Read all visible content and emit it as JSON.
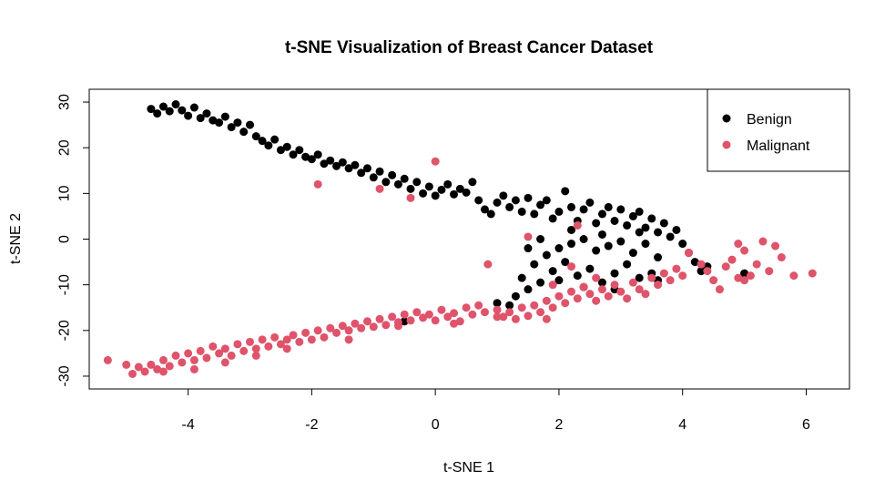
{
  "chart_data": {
    "type": "scatter",
    "title": "t-SNE Visualization of Breast Cancer Dataset",
    "xlabel": "t-SNE 1",
    "ylabel": "t-SNE 2",
    "xlim": [
      -5.6,
      6.7
    ],
    "ylim": [
      -32.8,
      32.8
    ],
    "xticks": [
      -4,
      -2,
      0,
      2,
      4,
      6
    ],
    "yticks": [
      -30,
      -20,
      -10,
      0,
      10,
      20,
      30
    ],
    "xtick_labels": [
      "-4",
      "-2",
      "0",
      "2",
      "4",
      "6"
    ],
    "ytick_labels": [
      "-30",
      "-20",
      "-10",
      "0",
      "10",
      "20",
      "30"
    ],
    "grid": false,
    "legend_position": "top-right",
    "series": [
      {
        "name": "Benign",
        "color": "#000000",
        "points": [
          [
            -4.6,
            28.5
          ],
          [
            -4.5,
            27.5
          ],
          [
            -4.4,
            29.0
          ],
          [
            -4.3,
            28.0
          ],
          [
            -4.2,
            29.5
          ],
          [
            -4.1,
            28.2
          ],
          [
            -4.0,
            27.0
          ],
          [
            -3.9,
            28.8
          ],
          [
            -3.8,
            26.5
          ],
          [
            -3.7,
            27.5
          ],
          [
            -3.6,
            26.0
          ],
          [
            -3.5,
            25.5
          ],
          [
            -3.4,
            26.8
          ],
          [
            -3.3,
            24.5
          ],
          [
            -3.2,
            25.5
          ],
          [
            -3.1,
            23.5
          ],
          [
            -3.0,
            25.0
          ],
          [
            -2.9,
            22.5
          ],
          [
            -2.8,
            21.5
          ],
          [
            -2.7,
            20.5
          ],
          [
            -2.6,
            21.8
          ],
          [
            -2.5,
            19.5
          ],
          [
            -2.4,
            20.2
          ],
          [
            -2.3,
            18.5
          ],
          [
            -2.2,
            19.5
          ],
          [
            -2.1,
            18.0
          ],
          [
            -2.0,
            17.5
          ],
          [
            -1.9,
            18.5
          ],
          [
            -1.8,
            16.5
          ],
          [
            -1.7,
            17.2
          ],
          [
            -1.6,
            16.0
          ],
          [
            -1.5,
            16.8
          ],
          [
            -1.4,
            15.5
          ],
          [
            -1.3,
            16.2
          ],
          [
            -1.2,
            14.5
          ],
          [
            -1.1,
            15.5
          ],
          [
            -1.0,
            13.5
          ],
          [
            -0.9,
            14.8
          ],
          [
            -0.8,
            12.5
          ],
          [
            -0.7,
            14.0
          ],
          [
            -0.6,
            12.0
          ],
          [
            -0.5,
            13.2
          ],
          [
            -0.4,
            11.0
          ],
          [
            -0.3,
            12.5
          ],
          [
            -0.2,
            10.0
          ],
          [
            -0.1,
            11.5
          ],
          [
            0.0,
            9.5
          ],
          [
            0.1,
            10.8
          ],
          [
            0.2,
            12.0
          ],
          [
            0.3,
            9.8
          ],
          [
            0.4,
            11.0
          ],
          [
            0.5,
            10.2
          ],
          [
            0.6,
            12.5
          ],
          [
            0.7,
            8.5
          ],
          [
            0.8,
            6.5
          ],
          [
            0.9,
            5.5
          ],
          [
            1.0,
            8.0
          ],
          [
            1.1,
            9.5
          ],
          [
            1.2,
            7.0
          ],
          [
            1.3,
            8.5
          ],
          [
            1.4,
            6.0
          ],
          [
            1.5,
            9.0
          ],
          [
            1.6,
            5.5
          ],
          [
            1.7,
            7.5
          ],
          [
            1.8,
            8.5
          ],
          [
            1.9,
            4.5
          ],
          [
            2.0,
            6.0
          ],
          [
            2.1,
            10.5
          ],
          [
            2.2,
            7.0
          ],
          [
            2.3,
            4.0
          ],
          [
            2.4,
            6.5
          ],
          [
            2.5,
            8.0
          ],
          [
            2.6,
            3.5
          ],
          [
            2.7,
            5.5
          ],
          [
            2.8,
            7.0
          ],
          [
            2.9,
            4.0
          ],
          [
            3.0,
            6.5
          ],
          [
            3.1,
            3.0
          ],
          [
            3.2,
            5.0
          ],
          [
            3.3,
            6.0
          ],
          [
            3.4,
            2.5
          ],
          [
            3.5,
            4.5
          ],
          [
            3.6,
            1.5
          ],
          [
            3.7,
            3.5
          ],
          [
            3.8,
            0.5
          ],
          [
            3.9,
            2.0
          ],
          [
            4.0,
            -1.0
          ],
          [
            4.1,
            -3.0
          ],
          [
            4.2,
            -5.0
          ],
          [
            4.3,
            -7.0
          ],
          [
            4.4,
            -6.0
          ],
          [
            3.6,
            -9.0
          ],
          [
            3.5,
            -7.5
          ],
          [
            3.3,
            -8.5
          ],
          [
            3.1,
            -5.5
          ],
          [
            2.9,
            -7.5
          ],
          [
            2.7,
            -9.5
          ],
          [
            2.5,
            -6.5
          ],
          [
            2.3,
            -8.0
          ],
          [
            2.1,
            -5.0
          ],
          [
            1.9,
            -7.0
          ],
          [
            1.7,
            -9.5
          ],
          [
            1.5,
            -11.0
          ],
          [
            1.3,
            -12.5
          ],
          [
            1.6,
            -5.5
          ],
          [
            1.8,
            -3.5
          ],
          [
            2.0,
            -2.0
          ],
          [
            2.2,
            -1.0
          ],
          [
            2.4,
            0.0
          ],
          [
            2.6,
            -2.5
          ],
          [
            2.8,
            -1.5
          ],
          [
            3.0,
            -0.5
          ],
          [
            3.2,
            -3.0
          ],
          [
            3.4,
            -1.0
          ],
          [
            3.6,
            -4.0
          ],
          [
            1.5,
            -2.0
          ],
          [
            1.7,
            0.0
          ],
          [
            2.2,
            2.0
          ],
          [
            2.7,
            1.0
          ],
          [
            3.3,
            1.5
          ],
          [
            1.0,
            -14.0
          ],
          [
            1.2,
            -14.5
          ],
          [
            -0.5,
            -18.0
          ],
          [
            5.0,
            -7.5
          ],
          [
            1.4,
            -8.5
          ],
          [
            2.0,
            -9.0
          ],
          [
            2.4,
            -10.5
          ],
          [
            2.9,
            -11.0
          ]
        ]
      },
      {
        "name": "Malignant",
        "color": "#DF536B",
        "points": [
          [
            -5.3,
            -26.5
          ],
          [
            -5.0,
            -27.5
          ],
          [
            -4.9,
            -29.5
          ],
          [
            -4.8,
            -28.0
          ],
          [
            -4.7,
            -29.0
          ],
          [
            -4.6,
            -27.5
          ],
          [
            -4.5,
            -28.5
          ],
          [
            -4.4,
            -26.5
          ],
          [
            -4.3,
            -27.8
          ],
          [
            -4.2,
            -25.5
          ],
          [
            -4.1,
            -27.0
          ],
          [
            -4.0,
            -25.0
          ],
          [
            -3.9,
            -26.5
          ],
          [
            -3.8,
            -24.5
          ],
          [
            -3.7,
            -26.0
          ],
          [
            -3.6,
            -23.5
          ],
          [
            -3.5,
            -25.0
          ],
          [
            -3.4,
            -24.0
          ],
          [
            -3.3,
            -25.5
          ],
          [
            -3.2,
            -23.0
          ],
          [
            -3.1,
            -24.5
          ],
          [
            -3.0,
            -22.5
          ],
          [
            -2.9,
            -24.0
          ],
          [
            -2.8,
            -22.0
          ],
          [
            -2.7,
            -23.5
          ],
          [
            -2.6,
            -21.5
          ],
          [
            -2.5,
            -23.0
          ],
          [
            -2.4,
            -22.0
          ],
          [
            -2.3,
            -21.0
          ],
          [
            -2.2,
            -22.5
          ],
          [
            -2.1,
            -20.5
          ],
          [
            -2.0,
            -22.0
          ],
          [
            -1.9,
            -20.0
          ],
          [
            -1.8,
            -21.5
          ],
          [
            -1.7,
            -19.5
          ],
          [
            -1.6,
            -20.5
          ],
          [
            -1.5,
            -19.0
          ],
          [
            -1.4,
            -20.0
          ],
          [
            -1.3,
            -18.5
          ],
          [
            -1.2,
            -19.5
          ],
          [
            -1.1,
            -18.0
          ],
          [
            -1.0,
            -19.2
          ],
          [
            -0.9,
            -17.5
          ],
          [
            -0.8,
            -18.8
          ],
          [
            -0.7,
            -17.0
          ],
          [
            -0.6,
            -18.2
          ],
          [
            -0.5,
            -16.5
          ],
          [
            -0.4,
            -17.8
          ],
          [
            -0.3,
            -16.0
          ],
          [
            -0.2,
            -17.2
          ],
          [
            -0.1,
            -16.5
          ],
          [
            0.0,
            -17.8
          ],
          [
            0.1,
            -15.5
          ],
          [
            0.2,
            -17.0
          ],
          [
            0.3,
            -16.2
          ],
          [
            0.4,
            -18.0
          ],
          [
            0.5,
            -15.0
          ],
          [
            0.6,
            -16.5
          ],
          [
            0.7,
            -14.5
          ],
          [
            0.8,
            -16.0
          ],
          [
            1.0,
            -15.5
          ],
          [
            1.1,
            -17.0
          ],
          [
            1.2,
            -16.0
          ],
          [
            1.3,
            -17.5
          ],
          [
            1.4,
            -15.0
          ],
          [
            1.5,
            -16.8
          ],
          [
            1.6,
            -14.5
          ],
          [
            1.7,
            -16.0
          ],
          [
            1.8,
            -13.5
          ],
          [
            1.9,
            -15.0
          ],
          [
            2.0,
            -12.5
          ],
          [
            2.1,
            -14.0
          ],
          [
            2.2,
            -11.5
          ],
          [
            2.3,
            -13.0
          ],
          [
            2.4,
            -10.5
          ],
          [
            2.5,
            -12.0
          ],
          [
            2.6,
            -13.5
          ],
          [
            2.7,
            -11.0
          ],
          [
            2.8,
            -12.5
          ],
          [
            2.9,
            -10.0
          ],
          [
            3.0,
            -11.5
          ],
          [
            3.1,
            -13.0
          ],
          [
            3.2,
            -9.5
          ],
          [
            3.3,
            -11.0
          ],
          [
            3.4,
            -12.0
          ],
          [
            3.5,
            -8.5
          ],
          [
            3.6,
            -10.0
          ],
          [
            3.7,
            -7.5
          ],
          [
            3.8,
            -9.0
          ],
          [
            3.9,
            -6.5
          ],
          [
            4.0,
            -8.0
          ],
          [
            4.1,
            -3.0
          ],
          [
            4.3,
            -5.5
          ],
          [
            4.4,
            -7.0
          ],
          [
            4.5,
            -9.0
          ],
          [
            4.6,
            -11.0
          ],
          [
            4.7,
            -6.0
          ],
          [
            4.8,
            -4.5
          ],
          [
            4.9,
            -1.0
          ],
          [
            5.0,
            -2.5
          ],
          [
            5.1,
            -8.0
          ],
          [
            5.2,
            -5.5
          ],
          [
            5.3,
            -0.5
          ],
          [
            5.4,
            -7.0
          ],
          [
            5.5,
            -1.5
          ],
          [
            5.6,
            -4.0
          ],
          [
            5.8,
            -8.0
          ],
          [
            6.1,
            -7.5
          ],
          [
            4.9,
            -8.5
          ],
          [
            5.0,
            -9.0
          ],
          [
            -1.9,
            12.0
          ],
          [
            -0.9,
            11.0
          ],
          [
            -0.4,
            9.0
          ],
          [
            0.0,
            17.0
          ],
          [
            0.85,
            -5.5
          ],
          [
            1.5,
            0.5
          ],
          [
            2.3,
            3.0
          ],
          [
            2.6,
            -8.5
          ],
          [
            2.2,
            -6.0
          ],
          [
            1.9,
            -10.0
          ],
          [
            -4.4,
            -29.0
          ],
          [
            -3.9,
            -28.5
          ],
          [
            -3.4,
            -27.0
          ],
          [
            -2.9,
            -25.5
          ],
          [
            -2.4,
            -24.0
          ],
          [
            -1.4,
            -22.0
          ],
          [
            -0.6,
            -19.0
          ],
          [
            0.3,
            -18.5
          ],
          [
            1.0,
            -17.0
          ],
          [
            1.8,
            -17.5
          ]
        ]
      }
    ]
  }
}
